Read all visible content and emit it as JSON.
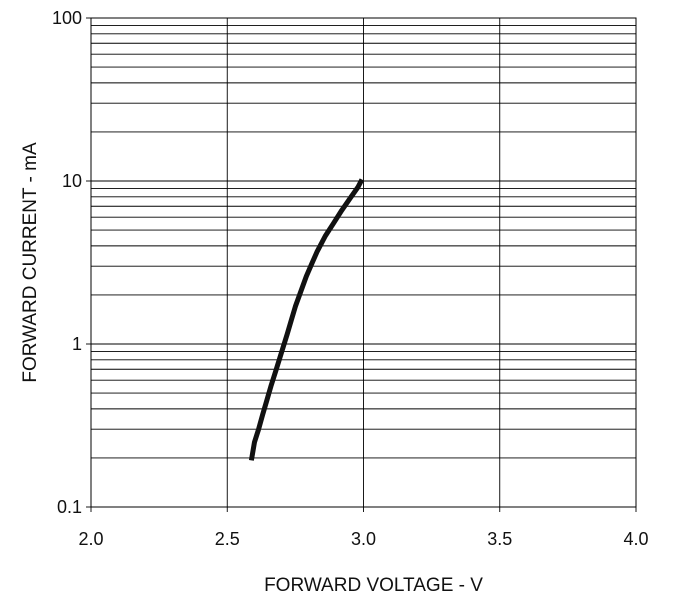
{
  "chart_data": {
    "type": "line",
    "xlabel": "FORWARD VOLTAGE - V",
    "ylabel": "FORWARD CURRENT - mA",
    "xlim": [
      2.0,
      4.0
    ],
    "ylim": [
      0.1,
      100
    ],
    "y_scale": "log",
    "grid": true,
    "x_ticks": [
      2.0,
      2.5,
      3.0,
      3.5,
      4.0
    ],
    "x_tick_labels": [
      "2.0",
      "2.5",
      "3.0",
      "3.5",
      "4.0"
    ],
    "y_ticks": [
      0.1,
      1,
      10,
      100
    ],
    "y_tick_labels": [
      "0.1",
      "1",
      "10",
      "100"
    ],
    "series": [
      {
        "color": "#111111",
        "x": [
          2.59,
          2.6,
          2.615,
          2.63,
          2.645,
          2.66,
          2.68,
          2.7,
          2.72,
          2.735,
          2.75,
          2.77,
          2.79,
          2.81,
          2.83,
          2.86,
          2.89,
          2.92,
          2.95,
          2.98,
          2.99
        ],
        "y": [
          0.2,
          0.25,
          0.3,
          0.37,
          0.45,
          0.55,
          0.7,
          0.9,
          1.15,
          1.4,
          1.7,
          2.1,
          2.6,
          3.1,
          3.7,
          4.6,
          5.5,
          6.6,
          7.8,
          9.2,
          9.9
        ]
      }
    ]
  }
}
